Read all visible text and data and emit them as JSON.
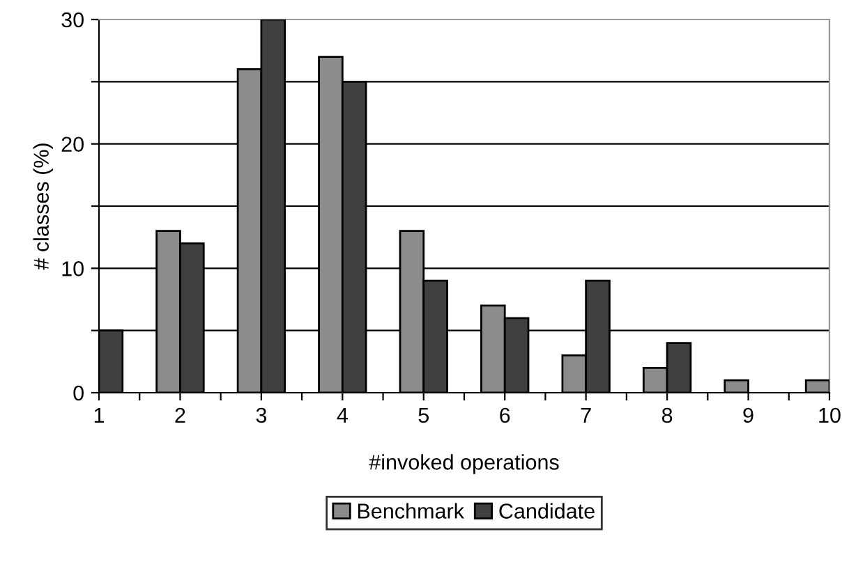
{
  "chart_data": {
    "type": "bar",
    "xlabel": "#invoked operations",
    "ylabel": "# classes (%)",
    "x": [
      1,
      2,
      3,
      4,
      5,
      6,
      7,
      8,
      9,
      10
    ],
    "series": [
      {
        "name": "Benchmark",
        "color": "#8c8c8c",
        "values": [
          null,
          13,
          26,
          27,
          13,
          7,
          3,
          2,
          1,
          1
        ]
      },
      {
        "name": "Candidate",
        "color": "#404040",
        "values": [
          5,
          12,
          30,
          25,
          9,
          6,
          9,
          4,
          null,
          null
        ]
      }
    ],
    "xlim": [
      1,
      10
    ],
    "xticks": [
      1,
      {
        "value": 1.5,
        "label": null
      },
      2,
      {
        "value": 2.5,
        "label": null
      },
      3,
      {
        "value": 3.5,
        "label": null
      },
      4,
      {
        "value": 4.5,
        "label": null
      },
      5,
      {
        "value": 5.5,
        "label": null
      },
      6,
      {
        "value": 6.5,
        "label": null
      },
      7,
      {
        "value": 7.5,
        "label": null
      },
      8,
      {
        "value": 8.5,
        "label": null
      },
      9,
      {
        "value": 9.5,
        "label": null
      },
      10
    ],
    "ylim": [
      0,
      30
    ],
    "yticks": [
      0,
      {
        "value": 5,
        "label": null
      },
      10,
      {
        "value": 15,
        "label": null
      },
      20,
      {
        "value": 25,
        "label": null
      },
      30
    ],
    "grid": "y",
    "legend": "bottom"
  }
}
